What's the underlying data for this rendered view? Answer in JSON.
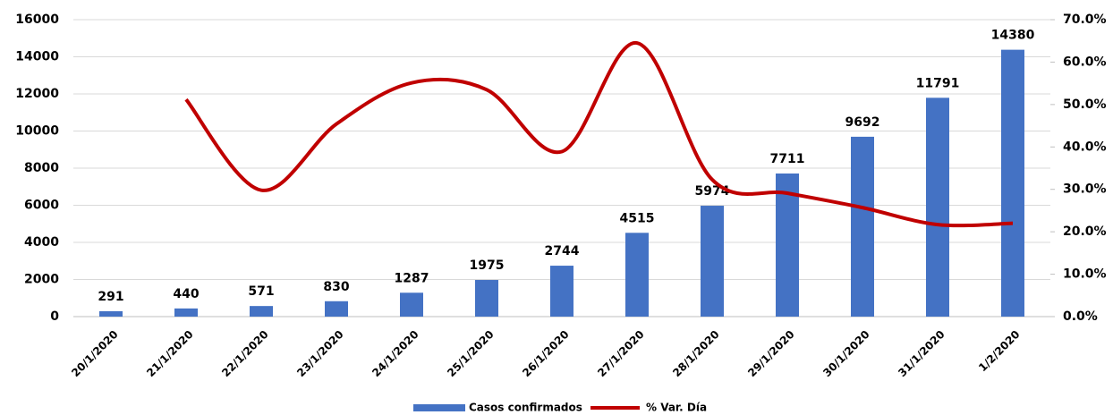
{
  "chart_data": {
    "type": "bar-line",
    "categories": [
      "20/1/2020",
      "21/1/2020",
      "22/1/2020",
      "23/1/2020",
      "24/1/2020",
      "25/1/2020",
      "26/1/2020",
      "27/1/2020",
      "28/1/2020",
      "29/1/2020",
      "30/1/2020",
      "31/1/2020",
      "1/2/2020"
    ],
    "series": [
      {
        "name": "Casos confirmados",
        "type": "bar",
        "color": "#4472c4",
        "values": [
          291,
          440,
          571,
          830,
          1287,
          1975,
          2744,
          4515,
          5974,
          7711,
          9692,
          11791,
          14380
        ]
      },
      {
        "name": "% Var. Día",
        "type": "line",
        "axis": "y2",
        "color": "#c00000",
        "values": [
          null,
          51.2,
          29.8,
          45.4,
          55.1,
          53.5,
          38.9,
          64.5,
          32.3,
          29.1,
          25.7,
          21.7,
          22.0
        ]
      }
    ],
    "ylim": [
      0,
      16000
    ],
    "yticks": [
      0,
      2000,
      4000,
      6000,
      8000,
      10000,
      12000,
      14000,
      16000
    ],
    "y2lim": [
      0,
      70
    ],
    "y2ticks": [
      {
        "value": 0,
        "label": "0.0%"
      },
      {
        "value": 10,
        "label": "10.0%"
      },
      {
        "value": 20,
        "label": "20.0%"
      },
      {
        "value": 30,
        "label": "30.0%"
      },
      {
        "value": 40,
        "label": "40.0%"
      },
      {
        "value": 50,
        "label": "50.0%"
      },
      {
        "value": 60,
        "label": "60.0%"
      },
      {
        "value": 70,
        "label": "70.0%"
      }
    ],
    "grid": true,
    "legend": "bottom"
  }
}
